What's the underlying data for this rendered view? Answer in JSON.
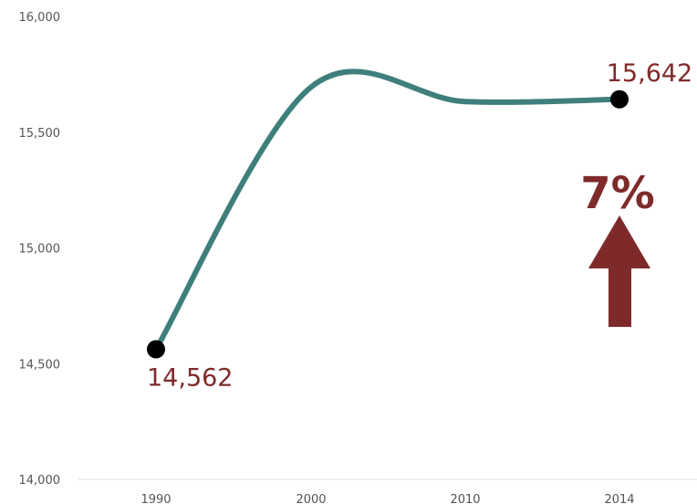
{
  "chart_data": {
    "type": "line",
    "title": "",
    "xlabel": "",
    "ylabel": "",
    "x": [
      "1990",
      "2000",
      "2010",
      "2014"
    ],
    "series": [
      {
        "values": [
          14562,
          15695,
          15632,
          15642
        ]
      }
    ],
    "highlighted_points": [
      {
        "x": "1990",
        "value": 14562,
        "label": "14,562"
      },
      {
        "x": "2014",
        "value": 15642,
        "label": "15,642"
      }
    ],
    "ylim": [
      14000,
      16000
    ],
    "yticks": [
      "14,000",
      "14,500",
      "15,000",
      "15,500",
      "16,000"
    ],
    "xticks": [
      "1990",
      "2000",
      "2010",
      "2014"
    ],
    "grid": false,
    "annotation": {
      "text": "7%",
      "arrow": "up"
    },
    "colors": {
      "line": "#3f7f7b",
      "marker": "#000000",
      "label": "#7f2a2a",
      "arrow": "#7f2a2a",
      "axis": "#dddddd",
      "tick_text": "#555555"
    }
  }
}
